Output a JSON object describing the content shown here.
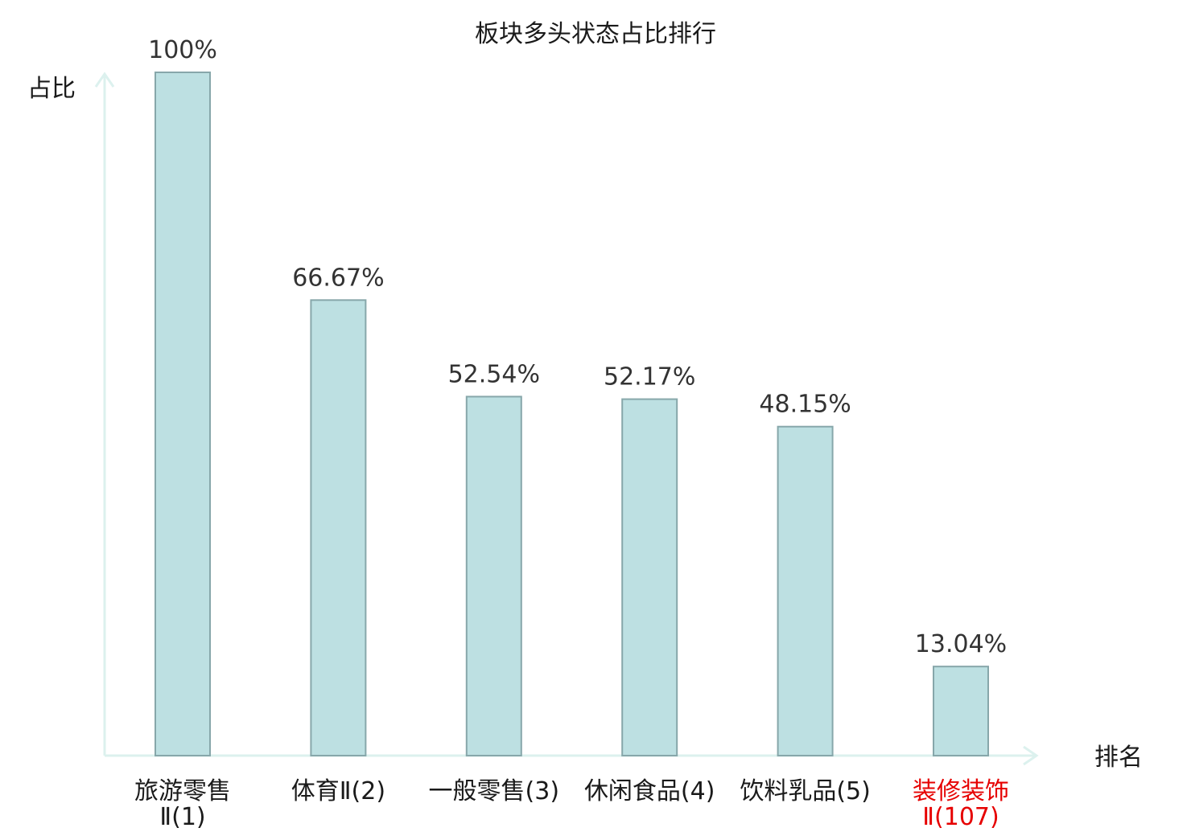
{
  "chart_data": {
    "type": "bar",
    "title": "板块多头状态占比排行",
    "ylabel": "占比",
    "xlabel": "排名",
    "categories": [
      [
        "旅游零售",
        "Ⅱ(1)"
      ],
      [
        "体育Ⅱ(2)"
      ],
      [
        "一般零售(3)"
      ],
      [
        "休闲食品(4)"
      ],
      [
        "饮料乳品(5)"
      ],
      [
        "装修装饰",
        "Ⅱ(107)"
      ]
    ],
    "values": [
      100,
      66.67,
      52.54,
      52.17,
      48.15,
      13.04
    ],
    "value_labels": [
      "100%",
      "66.67%",
      "52.54%",
      "52.17%",
      "48.15%",
      "13.04%"
    ],
    "ylim": [
      0,
      100
    ],
    "highlight_index": 5,
    "colors": {
      "bar_fill": "#bde0e2",
      "bar_stroke": "#87a7aa",
      "axis": "#dcf1ee",
      "text": "#1a1a1a",
      "value_text": "#333333",
      "highlight_text": "#e60000"
    }
  }
}
